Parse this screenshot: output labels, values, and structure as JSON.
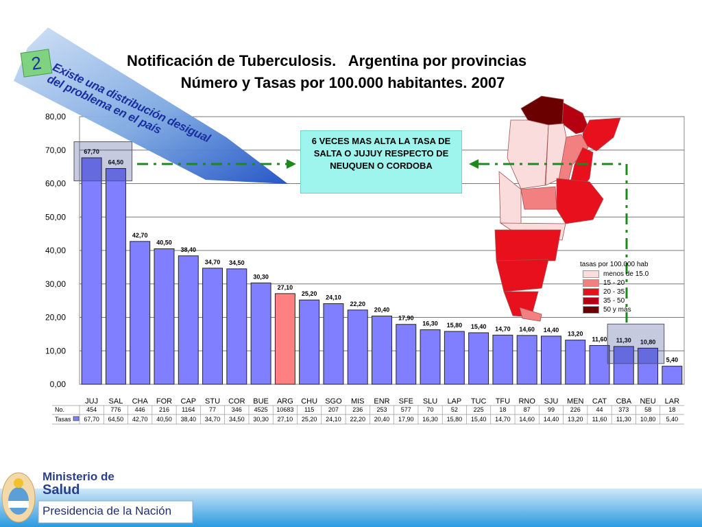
{
  "slide": {
    "title_line1": "Notificación de Tuberculosis.   Argentina por provincias",
    "title_line2": "Número y Tasas por 100.000 habitantes. 2007",
    "badge_number": "2",
    "ribbon_line1": "Existe una distribución desigual",
    "ribbon_line2": "del problema en el país",
    "callout": "6 VECES MAS ALTA LA TASA DE SALTA O JUJUY RESPECTO DE NEUQUEN O CORDOBA"
  },
  "legend": {
    "title": "tasas por 100.000 hab",
    "items": [
      {
        "label": "menos de 15.0",
        "color": "#fbdcdc"
      },
      {
        "label": "15 - 20",
        "color": "#f28080"
      },
      {
        "label": "20 - 35",
        "color": "#e8101c"
      },
      {
        "label": "35 - 50",
        "color": "#b40010"
      },
      {
        "label": "50 y más",
        "color": "#6a0000"
      }
    ]
  },
  "footer": {
    "ministry_line1": "Ministerio de",
    "ministry_line2": "Salud",
    "presidencia": "Presidencia de la Nación"
  },
  "colors": {
    "bar": "#7f7fff",
    "bar_highlight": "#ff8080",
    "plot_bg": "#ffffff",
    "callout_bg": "#9ef5ee",
    "arrow": "#1a8a1a"
  },
  "chart_data": {
    "type": "bar",
    "title": "",
    "xlabel": "",
    "ylabel": "",
    "ylim": [
      0,
      80
    ],
    "yticks": [
      "0,00",
      "10,00",
      "20,00",
      "30,00",
      "40,00",
      "50,00",
      "60,00",
      "70,00",
      "80,00"
    ],
    "grid": true,
    "categories": [
      "JUJ",
      "SAL",
      "CHA",
      "FOR",
      "CAP",
      "STU",
      "COR",
      "BUE",
      "ARG",
      "CHU",
      "SGO",
      "MIS",
      "ENR",
      "SFE",
      "SLU",
      "LAP",
      "TUC",
      "TFU",
      "RNO",
      "SJU",
      "MEN",
      "CAT",
      "CBA",
      "NEU",
      "LAR"
    ],
    "values": [
      67.7,
      64.5,
      42.7,
      40.5,
      38.4,
      34.7,
      34.5,
      30.3,
      27.1,
      25.2,
      24.1,
      22.2,
      20.4,
      17.9,
      16.3,
      15.8,
      15.4,
      14.7,
      14.6,
      14.4,
      13.2,
      11.6,
      11.3,
      10.8,
      5.4
    ],
    "value_labels": [
      "67,70",
      "64,50",
      "42,70",
      "40,50",
      "38,40",
      "34,70",
      "34,50",
      "30,30",
      "27,10",
      "25,20",
      "24,10",
      "22,20",
      "20,40",
      "17,90",
      "16,30",
      "15,80",
      "15,40",
      "14,70",
      "14,60",
      "14,40",
      "13,20",
      "11,60",
      "11,30",
      "10,80",
      "5,40"
    ],
    "highlight_category": "ARG",
    "table": {
      "row_labels": [
        "No.",
        "Tasas"
      ],
      "no": [
        "454",
        "776",
        "446",
        "216",
        "1164",
        "77",
        "346",
        "4525",
        "10683",
        "115",
        "207",
        "236",
        "253",
        "577",
        "70",
        "52",
        "225",
        "18",
        "87",
        "99",
        "226",
        "44",
        "373",
        "58",
        "18"
      ],
      "tasas": [
        "67,70",
        "64,50",
        "42,70",
        "40,50",
        "38,40",
        "34,70",
        "34,50",
        "30,30",
        "27,10",
        "25,20",
        "24,10",
        "22,20",
        "20,40",
        "17,90",
        "16,30",
        "15,80",
        "15,40",
        "14,70",
        "14,60",
        "14,40",
        "13,20",
        "11,60",
        "11,30",
        "10,80",
        "5,40"
      ]
    }
  }
}
